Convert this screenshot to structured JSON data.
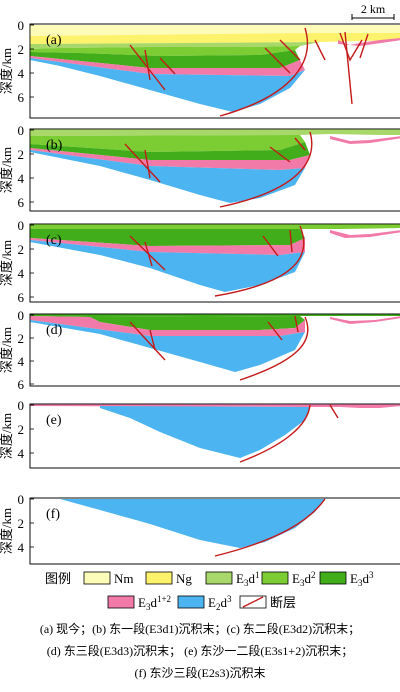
{
  "scale_bar": "2 km",
  "y_axis_label": "深度/km",
  "y_ticks": [
    "0",
    "2",
    "4",
    "6"
  ],
  "y_ticks_short": [
    "0",
    "2",
    "4"
  ],
  "panels": [
    {
      "label": "(a)",
      "depth_km": 7
    },
    {
      "label": "(b)",
      "depth_km": 6.5
    },
    {
      "label": "(c)",
      "depth_km": 6
    },
    {
      "label": "(d)",
      "depth_km": 5.2
    },
    {
      "label": "(e)",
      "depth_km": 4.4
    },
    {
      "label": "(f)",
      "depth_km": 3.8
    }
  ],
  "legend": {
    "title": "图例",
    "items": [
      {
        "label": "Nm",
        "color": "#fdfbb8"
      },
      {
        "label": "Ng",
        "color": "#fdf26b"
      },
      {
        "label": "E3d1",
        "color": "#a9d86a"
      },
      {
        "label": "E3d2",
        "color": "#7bcd33"
      },
      {
        "label": "E3d3",
        "color": "#41ad1a"
      },
      {
        "label": "E3d1+2",
        "color": "#f27aa8"
      },
      {
        "label": "E2d3",
        "color": "#4cb4f0"
      },
      {
        "label": "断层",
        "color": "#c41a1a"
      }
    ]
  },
  "caption": {
    "line1": "(a) 现今；(b) 东一段(E3d1)沉积末；(c) 东二段(E3d2)沉积末；",
    "line2": "(d) 东三段(E3d3)沉积末； (e) 东沙一二段(E3s1+2)沉积末；",
    "line3": "(f) 东沙三段(E2s3)沉积末"
  }
}
